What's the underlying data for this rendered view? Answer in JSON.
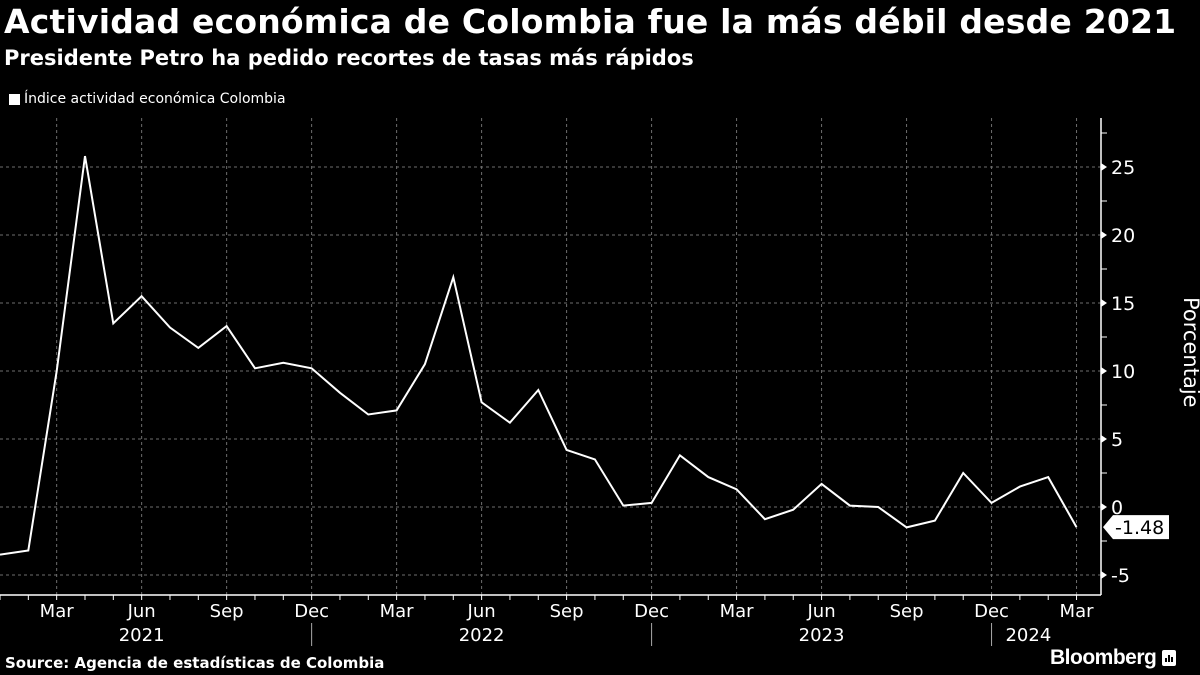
{
  "header": {
    "title": "Actividad económica de Colombia fue la más débil desde 2021",
    "subtitle": "Presidente Petro ha pedido recortes de tasas más rápidos"
  },
  "legend": {
    "label": "Índice actividad económica Colombia",
    "color": "#ffffff"
  },
  "footer": {
    "source": "Source: Agencia de estadísticas de Colombia",
    "brand": "Bloomberg"
  },
  "colors": {
    "background": "#000000",
    "line": "#ffffff",
    "grid": "#6e6e6e"
  },
  "chart_data": {
    "type": "line",
    "title": "Actividad económica de Colombia fue la más débil desde 2021",
    "subtitle": "Presidente Petro ha pedido recortes de tasas más rápidos",
    "xlabel": "",
    "ylabel": "Porcentaje",
    "ylim": [
      -6.5,
      28
    ],
    "yticks": [
      -5,
      0,
      5,
      10,
      15,
      20,
      25
    ],
    "grid": true,
    "legend_position": "top-left",
    "x_tick_labels": [
      {
        "label": "Mar",
        "year": "2021"
      },
      {
        "label": "Jun",
        "year": "2021"
      },
      {
        "label": "Sep",
        "year": "2021"
      },
      {
        "label": "Dec",
        "year": "2021"
      },
      {
        "label": "Mar",
        "year": "2022"
      },
      {
        "label": "Jun",
        "year": "2022"
      },
      {
        "label": "Sep",
        "year": "2022"
      },
      {
        "label": "Dec",
        "year": "2022"
      },
      {
        "label": "Mar",
        "year": "2023"
      },
      {
        "label": "Jun",
        "year": "2023"
      },
      {
        "label": "Sep",
        "year": "2023"
      },
      {
        "label": "Dec",
        "year": "2023"
      },
      {
        "label": "Mar",
        "year": "2024"
      }
    ],
    "year_labels": [
      "2021",
      "2022",
      "2023",
      "2024"
    ],
    "last_value_label": "-1.48",
    "x": [
      "2021-01",
      "2021-02",
      "2021-03",
      "2021-04",
      "2021-05",
      "2021-06",
      "2021-07",
      "2021-08",
      "2021-09",
      "2021-10",
      "2021-11",
      "2021-12",
      "2022-01",
      "2022-02",
      "2022-03",
      "2022-04",
      "2022-05",
      "2022-06",
      "2022-07",
      "2022-08",
      "2022-09",
      "2022-10",
      "2022-11",
      "2022-12",
      "2023-01",
      "2023-02",
      "2023-03",
      "2023-04",
      "2023-05",
      "2023-06",
      "2023-07",
      "2023-08",
      "2023-09",
      "2023-10",
      "2023-11",
      "2023-12",
      "2024-01",
      "2024-02",
      "2024-03"
    ],
    "series": [
      {
        "name": "Índice actividad económica Colombia",
        "values": [
          -3.5,
          -3.2,
          10.0,
          25.8,
          13.5,
          15.5,
          13.2,
          11.7,
          13.3,
          10.2,
          10.6,
          10.2,
          8.4,
          6.8,
          7.1,
          10.5,
          16.9,
          7.7,
          6.2,
          8.6,
          4.2,
          3.5,
          0.1,
          0.3,
          3.8,
          2.2,
          1.3,
          -0.9,
          -0.2,
          1.7,
          0.1,
          0.0,
          -1.5,
          -1.0,
          2.5,
          0.3,
          1.5,
          2.2,
          -1.48
        ]
      }
    ]
  }
}
